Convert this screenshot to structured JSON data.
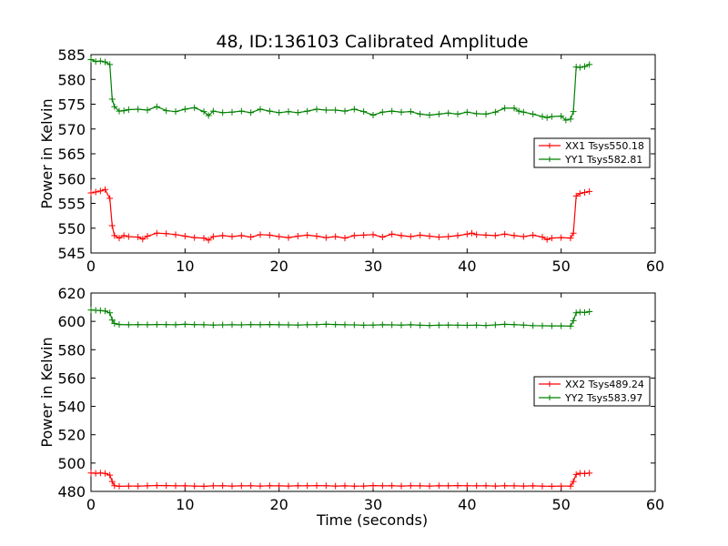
{
  "figure": {
    "title": "48, ID:136103 Calibrated Amplitude",
    "xlabel": "Time (seconds)"
  },
  "colors": {
    "red": "#ff0000",
    "green": "#008000",
    "axes": "#000000",
    "background": "#ffffff"
  },
  "chart_data": [
    {
      "type": "line",
      "title": "48, ID:136103 Calibrated Amplitude",
      "xlabel": "",
      "ylabel": "Power in Kelvin",
      "xlim": [
        0,
        60
      ],
      "ylim": [
        545,
        585
      ],
      "xticks": [
        "0",
        "10",
        "20",
        "30",
        "40",
        "50",
        "60"
      ],
      "yticks": [
        "545",
        "550",
        "555",
        "560",
        "565",
        "570",
        "575",
        "580",
        "585"
      ],
      "grid": false,
      "legend_position": "center-right",
      "marker": "plus",
      "series": [
        {
          "name": "XX1 Tsys550.18",
          "color": "#ff0000",
          "points": [
            [
              0,
              557.1
            ],
            [
              0.5,
              557.3
            ],
            [
              1.0,
              557.5
            ],
            [
              1.5,
              557.8
            ],
            [
              2.0,
              556.0
            ],
            [
              2.25,
              550.5
            ],
            [
              2.5,
              548.5
            ],
            [
              3.0,
              548.0
            ],
            [
              3.5,
              548.5
            ],
            [
              4.0,
              548.3
            ],
            [
              5.0,
              548.2
            ],
            [
              5.5,
              547.8
            ],
            [
              6.0,
              548.4
            ],
            [
              7.0,
              549.0
            ],
            [
              8.0,
              548.9
            ],
            [
              9.0,
              548.7
            ],
            [
              10.0,
              548.4
            ],
            [
              11.0,
              548.1
            ],
            [
              12.0,
              548.0
            ],
            [
              12.5,
              547.6
            ],
            [
              13.0,
              548.3
            ],
            [
              14.0,
              548.5
            ],
            [
              15.0,
              548.3
            ],
            [
              16.0,
              548.5
            ],
            [
              17.0,
              548.2
            ],
            [
              18.0,
              548.7
            ],
            [
              19.0,
              548.6
            ],
            [
              20.0,
              548.3
            ],
            [
              21.0,
              548.1
            ],
            [
              22.0,
              548.4
            ],
            [
              23.0,
              548.6
            ],
            [
              24.0,
              548.4
            ],
            [
              25.0,
              548.1
            ],
            [
              26.0,
              548.3
            ],
            [
              27.0,
              548.0
            ],
            [
              28.0,
              548.5
            ],
            [
              29.0,
              548.6
            ],
            [
              30.0,
              548.7
            ],
            [
              31.0,
              548.2
            ],
            [
              32.0,
              548.8
            ],
            [
              33.0,
              548.5
            ],
            [
              34.0,
              548.3
            ],
            [
              35.0,
              548.6
            ],
            [
              36.0,
              548.4
            ],
            [
              37.0,
              548.2
            ],
            [
              38.0,
              548.3
            ],
            [
              39.0,
              548.5
            ],
            [
              40.0,
              548.8
            ],
            [
              40.5,
              549.0
            ],
            [
              41.0,
              548.7
            ],
            [
              42.0,
              548.6
            ],
            [
              43.0,
              548.5
            ],
            [
              44.0,
              548.8
            ],
            [
              45.0,
              548.5
            ],
            [
              46.0,
              548.3
            ],
            [
              47.0,
              548.6
            ],
            [
              48.0,
              548.2
            ],
            [
              48.5,
              547.7
            ],
            [
              49.0,
              548.0
            ],
            [
              50.0,
              548.1
            ],
            [
              51.0,
              548.0
            ],
            [
              51.3,
              549.0
            ],
            [
              51.6,
              556.5
            ],
            [
              52.0,
              557.0
            ],
            [
              52.5,
              557.2
            ],
            [
              53.0,
              557.4
            ]
          ]
        },
        {
          "name": "YY1 Tsys582.81",
          "color": "#008000",
          "points": [
            [
              0,
              584.0
            ],
            [
              0.5,
              583.6
            ],
            [
              1.0,
              583.7
            ],
            [
              1.5,
              583.5
            ],
            [
              2.0,
              583.0
            ],
            [
              2.25,
              576.0
            ],
            [
              2.5,
              574.5
            ],
            [
              3.0,
              573.6
            ],
            [
              3.5,
              573.7
            ],
            [
              4.0,
              573.9
            ],
            [
              5.0,
              574.0
            ],
            [
              6.0,
              573.8
            ],
            [
              7.0,
              574.5
            ],
            [
              8.0,
              573.7
            ],
            [
              9.0,
              573.5
            ],
            [
              10.0,
              574.0
            ],
            [
              11.0,
              574.3
            ],
            [
              12.0,
              573.5
            ],
            [
              12.5,
              572.7
            ],
            [
              13.0,
              573.6
            ],
            [
              14.0,
              573.3
            ],
            [
              15.0,
              573.4
            ],
            [
              16.0,
              573.6
            ],
            [
              17.0,
              573.3
            ],
            [
              18.0,
              574.0
            ],
            [
              19.0,
              573.6
            ],
            [
              20.0,
              573.3
            ],
            [
              21.0,
              573.5
            ],
            [
              22.0,
              573.3
            ],
            [
              23.0,
              573.6
            ],
            [
              24.0,
              574.0
            ],
            [
              25.0,
              573.8
            ],
            [
              26.0,
              573.8
            ],
            [
              27.0,
              573.6
            ],
            [
              28.0,
              574.0
            ],
            [
              29.0,
              573.5
            ],
            [
              30.0,
              572.8
            ],
            [
              31.0,
              573.4
            ],
            [
              32.0,
              573.6
            ],
            [
              33.0,
              573.4
            ],
            [
              34.0,
              573.5
            ],
            [
              35.0,
              573.0
            ],
            [
              36.0,
              572.8
            ],
            [
              37.0,
              573.0
            ],
            [
              38.0,
              573.2
            ],
            [
              39.0,
              573.0
            ],
            [
              40.0,
              573.4
            ],
            [
              41.0,
              573.1
            ],
            [
              42.0,
              573.0
            ],
            [
              43.0,
              573.4
            ],
            [
              44.0,
              574.2
            ],
            [
              45.0,
              574.2
            ],
            [
              45.5,
              573.6
            ],
            [
              46.0,
              573.4
            ],
            [
              47.0,
              573.0
            ],
            [
              48.0,
              572.5
            ],
            [
              48.5,
              572.3
            ],
            [
              49.0,
              572.5
            ],
            [
              50.0,
              572.6
            ],
            [
              50.5,
              571.8
            ],
            [
              51.0,
              572.0
            ],
            [
              51.3,
              573.5
            ],
            [
              51.6,
              582.5
            ],
            [
              52.0,
              582.4
            ],
            [
              52.5,
              582.6
            ],
            [
              53.0,
              583.0
            ]
          ]
        }
      ]
    },
    {
      "type": "line",
      "title": "",
      "xlabel": "Time (seconds)",
      "ylabel": "Power in Kelvin",
      "xlim": [
        0,
        60
      ],
      "ylim": [
        480,
        620
      ],
      "xticks": [
        "0",
        "10",
        "20",
        "30",
        "40",
        "50",
        "60"
      ],
      "yticks": [
        "480",
        "500",
        "520",
        "540",
        "560",
        "580",
        "600",
        "620"
      ],
      "grid": false,
      "legend_position": "center-right",
      "marker": "plus",
      "series": [
        {
          "name": "XX2 Tsys489.24",
          "color": "#ff0000",
          "points": [
            [
              0,
              493.0
            ],
            [
              0.5,
              492.8
            ],
            [
              1.0,
              493.0
            ],
            [
              1.5,
              492.7
            ],
            [
              2.0,
              491.5
            ],
            [
              2.25,
              487.0
            ],
            [
              2.5,
              484.0
            ],
            [
              3.0,
              483.6
            ],
            [
              4.0,
              483.8
            ],
            [
              5.0,
              483.7
            ],
            [
              6.0,
              483.9
            ],
            [
              7.0,
              484.2
            ],
            [
              8.0,
              484.1
            ],
            [
              9.0,
              483.9
            ],
            [
              10.0,
              484.0
            ],
            [
              11.0,
              483.8
            ],
            [
              12.0,
              483.6
            ],
            [
              13.0,
              483.9
            ],
            [
              14.0,
              484.0
            ],
            [
              15.0,
              483.8
            ],
            [
              16.0,
              483.9
            ],
            [
              17.0,
              484.0
            ],
            [
              18.0,
              483.8
            ],
            [
              19.0,
              484.0
            ],
            [
              20.0,
              483.9
            ],
            [
              21.0,
              483.8
            ],
            [
              22.0,
              484.0
            ],
            [
              23.0,
              483.9
            ],
            [
              24.0,
              484.1
            ],
            [
              25.0,
              484.0
            ],
            [
              26.0,
              483.8
            ],
            [
              27.0,
              483.9
            ],
            [
              28.0,
              483.7
            ],
            [
              29.0,
              483.8
            ],
            [
              30.0,
              484.1
            ],
            [
              31.0,
              483.9
            ],
            [
              32.0,
              484.0
            ],
            [
              33.0,
              483.8
            ],
            [
              34.0,
              484.0
            ],
            [
              35.0,
              483.9
            ],
            [
              36.0,
              483.8
            ],
            [
              37.0,
              484.0
            ],
            [
              38.0,
              483.9
            ],
            [
              39.0,
              484.1
            ],
            [
              40.0,
              484.0
            ],
            [
              41.0,
              483.9
            ],
            [
              42.0,
              484.0
            ],
            [
              43.0,
              483.8
            ],
            [
              44.0,
              484.0
            ],
            [
              45.0,
              483.9
            ],
            [
              46.0,
              483.8
            ],
            [
              47.0,
              483.9
            ],
            [
              48.0,
              483.7
            ],
            [
              49.0,
              483.6
            ],
            [
              50.0,
              483.8
            ],
            [
              51.0,
              483.7
            ],
            [
              51.3,
              487.0
            ],
            [
              51.6,
              492.0
            ],
            [
              52.0,
              492.8
            ],
            [
              52.5,
              492.6
            ],
            [
              53.0,
              492.9
            ]
          ]
        },
        {
          "name": "YY2 Tsys583.97",
          "color": "#008000",
          "points": [
            [
              0,
              608.0
            ],
            [
              0.5,
              607.8
            ],
            [
              1.0,
              607.6
            ],
            [
              1.5,
              607.3
            ],
            [
              2.0,
              606.0
            ],
            [
              2.25,
              601.0
            ],
            [
              2.5,
              598.5
            ],
            [
              3.0,
              597.8
            ],
            [
              4.0,
              597.6
            ],
            [
              5.0,
              597.7
            ],
            [
              6.0,
              597.6
            ],
            [
              7.0,
              597.8
            ],
            [
              8.0,
              597.7
            ],
            [
              9.0,
              597.6
            ],
            [
              10.0,
              597.9
            ],
            [
              11.0,
              597.7
            ],
            [
              12.0,
              597.6
            ],
            [
              13.0,
              597.4
            ],
            [
              14.0,
              597.5
            ],
            [
              15.0,
              597.6
            ],
            [
              16.0,
              597.5
            ],
            [
              17.0,
              597.7
            ],
            [
              18.0,
              597.6
            ],
            [
              19.0,
              597.8
            ],
            [
              20.0,
              597.6
            ],
            [
              21.0,
              597.5
            ],
            [
              22.0,
              597.4
            ],
            [
              23.0,
              597.6
            ],
            [
              24.0,
              597.7
            ],
            [
              25.0,
              598.0
            ],
            [
              26.0,
              597.8
            ],
            [
              27.0,
              597.6
            ],
            [
              28.0,
              597.5
            ],
            [
              29.0,
              597.3
            ],
            [
              30.0,
              597.4
            ],
            [
              31.0,
              597.6
            ],
            [
              32.0,
              597.5
            ],
            [
              33.0,
              597.4
            ],
            [
              34.0,
              597.6
            ],
            [
              35.0,
              597.3
            ],
            [
              36.0,
              597.1
            ],
            [
              37.0,
              597.3
            ],
            [
              38.0,
              597.4
            ],
            [
              39.0,
              597.3
            ],
            [
              40.0,
              597.2
            ],
            [
              41.0,
              597.3
            ],
            [
              42.0,
              597.1
            ],
            [
              43.0,
              597.5
            ],
            [
              44.0,
              597.9
            ],
            [
              45.0,
              597.7
            ],
            [
              46.0,
              597.4
            ],
            [
              47.0,
              597.0
            ],
            [
              48.0,
              596.9
            ],
            [
              49.0,
              596.8
            ],
            [
              50.0,
              596.8
            ],
            [
              51.0,
              596.6
            ],
            [
              51.3,
              600.5
            ],
            [
              51.6,
              606.0
            ],
            [
              52.0,
              606.5
            ],
            [
              52.5,
              606.3
            ],
            [
              53.0,
              606.8
            ]
          ]
        }
      ]
    }
  ]
}
